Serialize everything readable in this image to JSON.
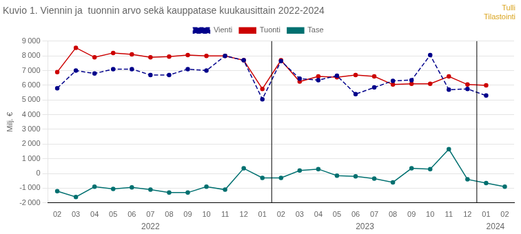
{
  "chart_data": {
    "type": "line",
    "title": "Kuvio 1. Viennin ja  tuonnin arvo sekä kauppatase kuukausittain 2022-2024",
    "watermark": [
      "Tulli",
      "Tilastointi"
    ],
    "y_label": "Milj. €",
    "categories": [
      "02",
      "03",
      "04",
      "05",
      "06",
      "07",
      "08",
      "09",
      "10",
      "11",
      "12",
      "01",
      "02",
      "03",
      "04",
      "05",
      "06",
      "07",
      "08",
      "09",
      "10",
      "11",
      "12",
      "01",
      "02"
    ],
    "series": [
      {
        "name": "Vienti",
        "color": "#00008B",
        "line_style": "dashed",
        "marker": "circle",
        "values": [
          5800,
          7000,
          6800,
          7100,
          7100,
          6700,
          6700,
          7100,
          7000,
          8000,
          7700,
          5050,
          7650,
          6450,
          6350,
          6650,
          5400,
          5850,
          6300,
          6350,
          8050,
          5700,
          5750,
          5300,
          null
        ]
      },
      {
        "name": "Tuonti",
        "color": "#CC0000",
        "line_style": "solid",
        "marker": "circle",
        "values": [
          6900,
          8550,
          7900,
          8200,
          8100,
          7900,
          7950,
          8050,
          8000,
          8000,
          7700,
          5750,
          7700,
          6250,
          6600,
          6550,
          6700,
          6600,
          6050,
          6100,
          6100,
          6600,
          6050,
          6000,
          null
        ]
      },
      {
        "name": "Tase",
        "color": "#007070",
        "line_style": "solid",
        "marker": "circle",
        "values": [
          -1200,
          -1600,
          -900,
          -1050,
          -950,
          -1100,
          -1300,
          -1300,
          -900,
          -1100,
          350,
          -300,
          -300,
          200,
          300,
          -150,
          -200,
          -350,
          -600,
          350,
          300,
          1650,
          -400,
          -650,
          -900
        ]
      }
    ],
    "annotations": [
      {
        "text": "2022",
        "x": 5.0
      },
      {
        "text": "2023",
        "x": 16.5
      },
      {
        "text": "2024",
        "x": 23.5
      }
    ],
    "vlines": [
      11.5,
      22.5
    ],
    "ylim": [
      -2000,
      9000
    ],
    "yticks": [
      {
        "value": -2000,
        "label": "-2 000"
      },
      {
        "value": -1000,
        "label": "-1 000"
      },
      0,
      {
        "value": 1000,
        "label": "1 000"
      },
      {
        "value": 2000,
        "label": "2 000"
      },
      {
        "value": 3000,
        "label": "3 000"
      },
      {
        "value": 4000,
        "label": "4 000"
      },
      {
        "value": 5000,
        "label": "5 000"
      },
      {
        "value": 6000,
        "label": "6 000"
      },
      {
        "value": 7000,
        "label": "7 000"
      },
      {
        "value": 8000,
        "label": "8 000"
      },
      {
        "value": 9000,
        "label": "9 000"
      }
    ],
    "grid": "y",
    "legend": "top",
    "watermark_color": "#DAA520"
  }
}
